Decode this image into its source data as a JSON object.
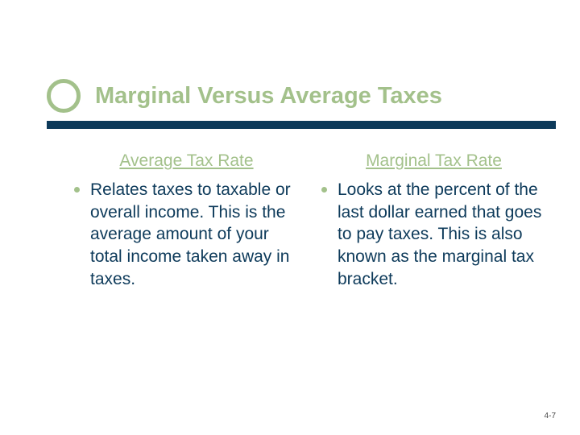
{
  "colors": {
    "accent_green": "#a3c18b",
    "navy": "#0d3a5a",
    "text_navy": "#0d3a5a",
    "bullet": "#a3c18b",
    "ring_border_width": 5
  },
  "title": "Marginal Versus Average Taxes",
  "columns": [
    {
      "heading": "Average Tax Rate",
      "bullet": "Relates taxes to taxable or overall income. This is the average amount of your total income taken away in taxes."
    },
    {
      "heading": "Marginal Tax Rate",
      "bullet": "Looks at the percent of the last dollar earned that goes to pay taxes. This is also known as the marginal tax bracket."
    }
  ],
  "page_number": "4-7"
}
